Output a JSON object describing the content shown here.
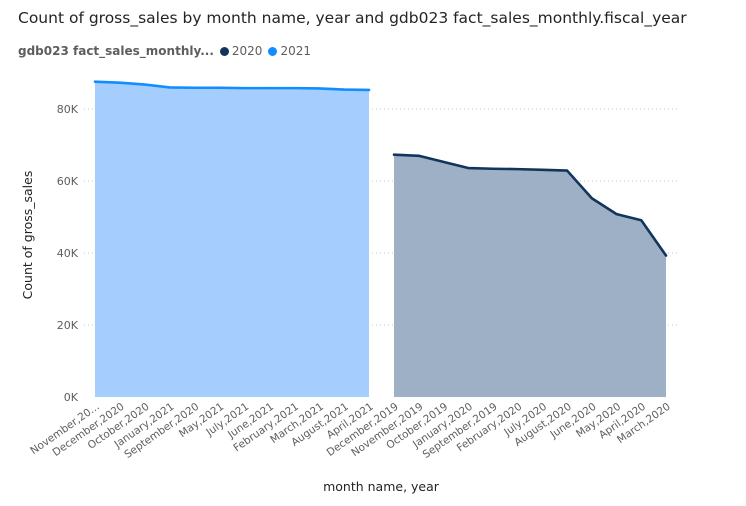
{
  "chart_data": {
    "type": "area",
    "title": "Count of gross_sales by month name, year and gdb023 fact_sales_monthly.fiscal_year",
    "xlabel": "month name, year",
    "ylabel": "Count of gross_sales",
    "ylim": [
      0,
      90000
    ],
    "yticks": [
      "0K",
      "20K",
      "40K",
      "60K",
      "80K"
    ],
    "ytick_values": [
      0,
      20000,
      40000,
      60000,
      80000
    ],
    "grid": true,
    "legend": {
      "title": "gdb023 fact_sales_monthly...",
      "placement": "top-left",
      "entries": [
        {
          "label": "2020",
          "color": "#12355b"
        },
        {
          "label": "2021",
          "color": "#118dff"
        }
      ]
    },
    "categories": [
      "November,20...",
      "December,2020",
      "October,2020",
      "January,2021",
      "September,2020",
      "May,2021",
      "July,2021",
      "June,2021",
      "February,2021",
      "March,2021",
      "August,2021",
      "April,2021",
      "December,2019",
      "November,2019",
      "October,2019",
      "January,2020",
      "September,2019",
      "February,2020",
      "July,2020",
      "August,2020",
      "June,2020",
      "May,2020",
      "April,2020",
      "March,2020"
    ],
    "series": [
      {
        "name": "2021",
        "color": "#118dff",
        "fill": "#a5cdfd",
        "values": [
          87600,
          87300,
          86800,
          86000,
          85900,
          85900,
          85800,
          85800,
          85800,
          85700,
          85400,
          85300,
          null,
          null,
          null,
          null,
          null,
          null,
          null,
          null,
          null,
          null,
          null,
          null
        ]
      },
      {
        "name": "2020",
        "color": "#12355b",
        "fill": "#9eb0c6",
        "values": [
          null,
          null,
          null,
          null,
          null,
          null,
          null,
          null,
          null,
          null,
          null,
          null,
          67300,
          67000,
          65300,
          63600,
          63400,
          63300,
          63100,
          62900,
          55200,
          50800,
          49100,
          39300
        ]
      }
    ]
  }
}
